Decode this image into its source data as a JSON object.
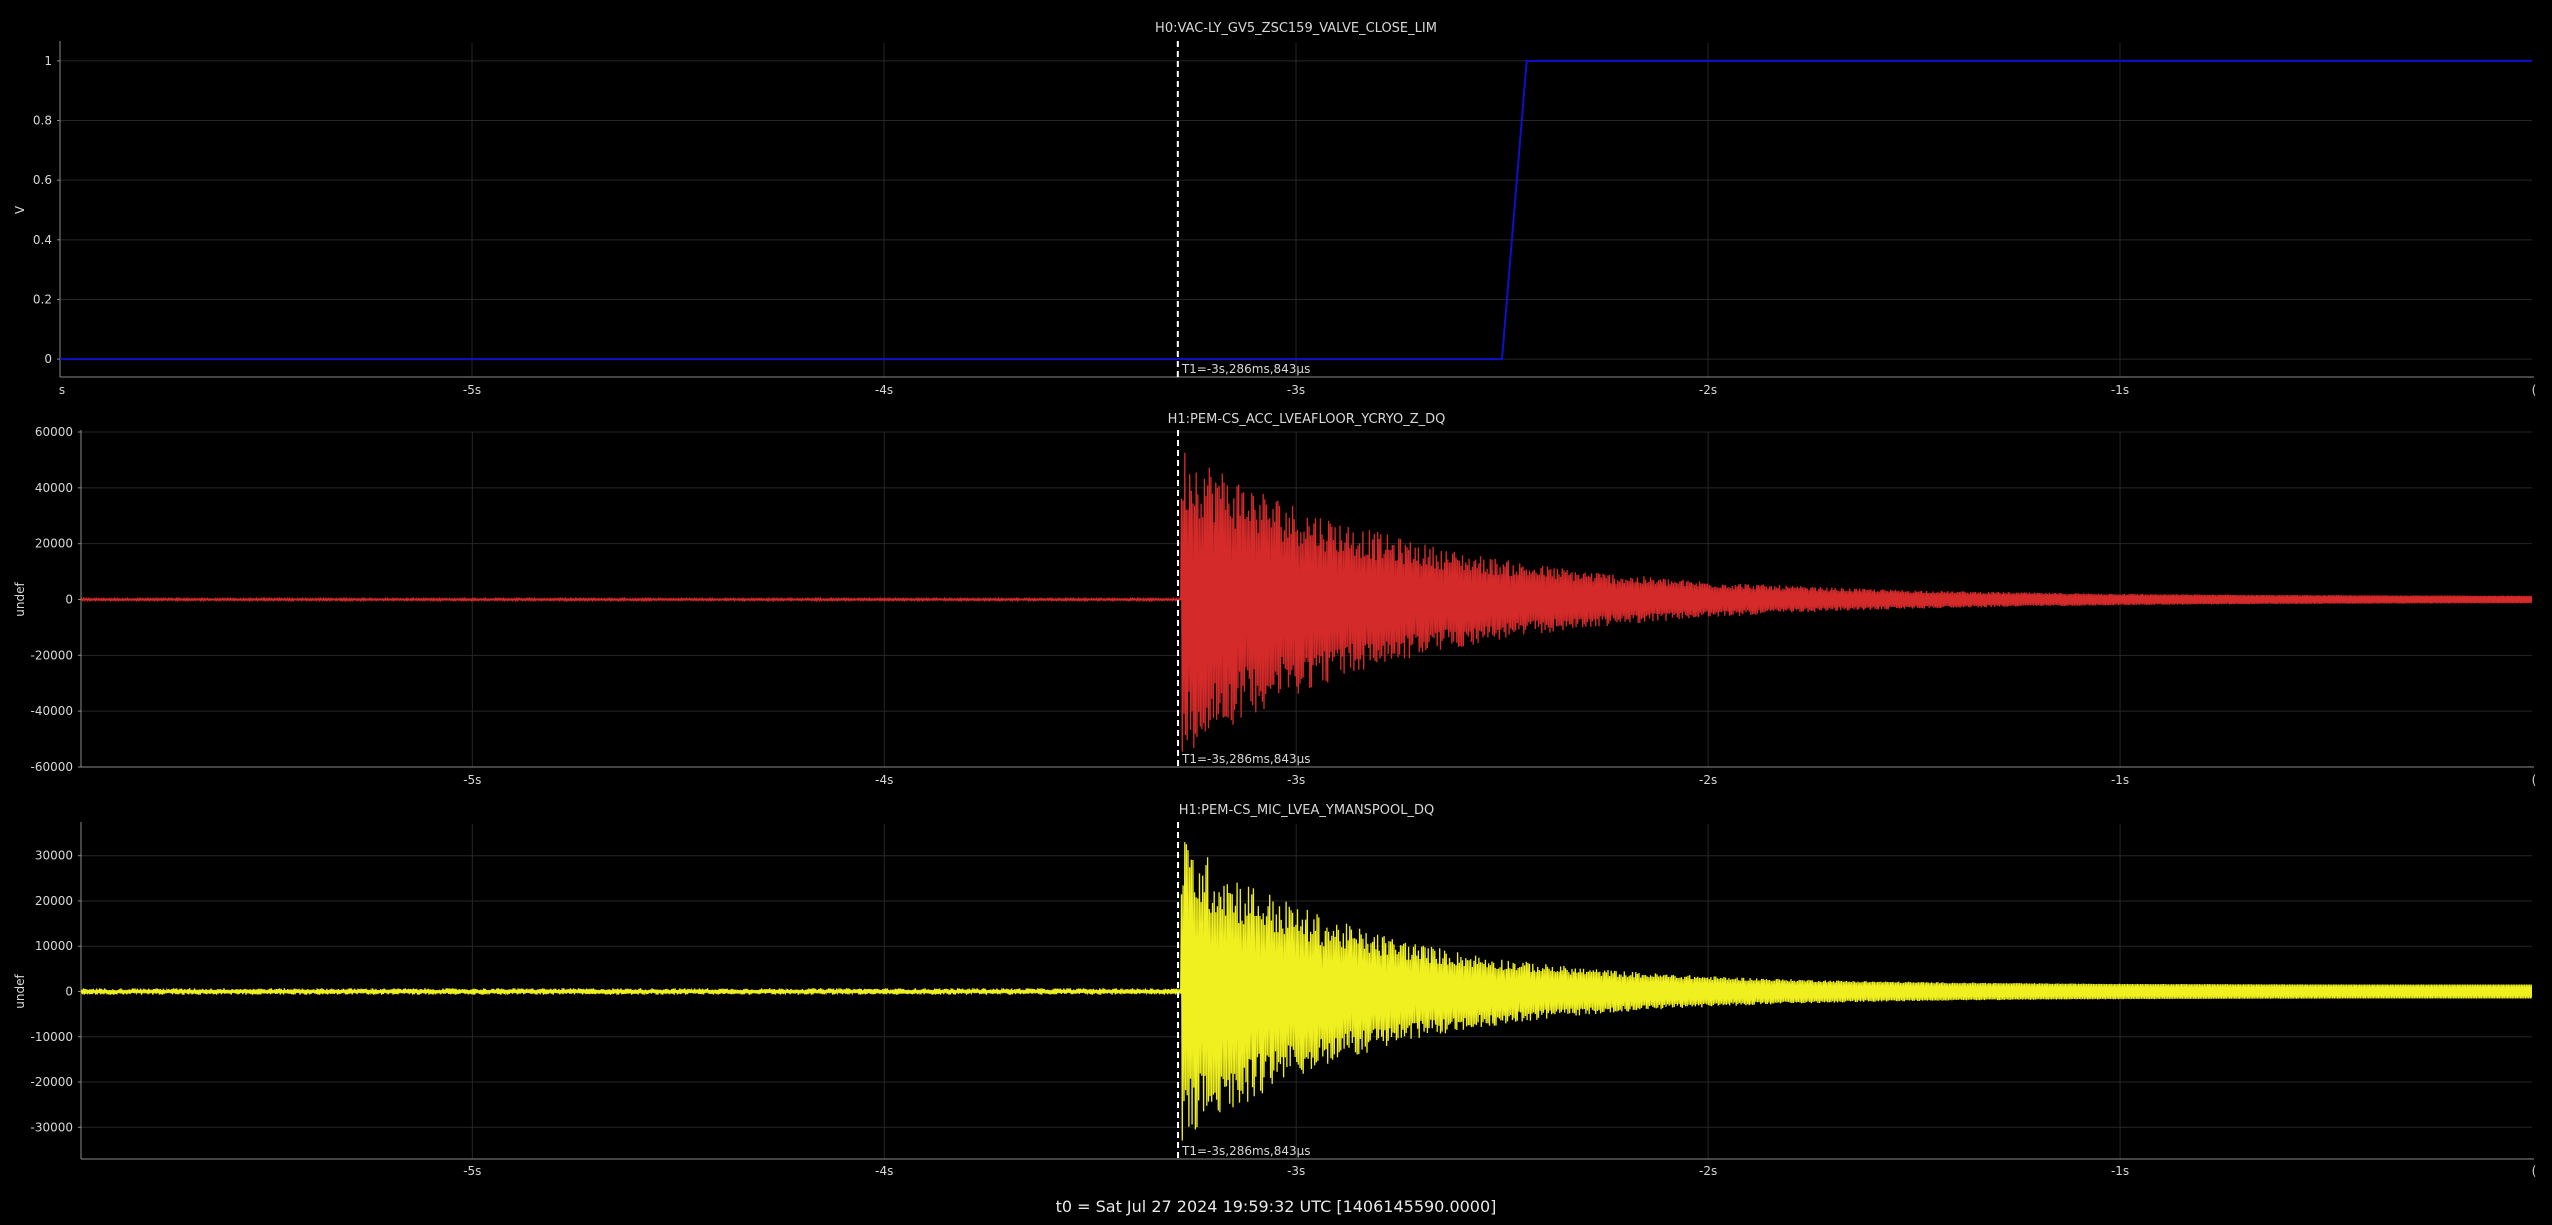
{
  "footer": {
    "t0": "t0 = Sat Jul 27 2024 19:59:32 UTC [1406145590.0000]"
  },
  "cursor": {
    "x": -3.286843,
    "label": "T1=-3s,286ms,843µs"
  },
  "colors": {
    "background": "#000000",
    "grid": "#262626",
    "axis": "#8a8a8a",
    "text": "#d8d8d8",
    "cursor": "#ffffff"
  },
  "chart_data": [
    {
      "type": "line",
      "title": "H0:VAC-LY_GV5_ZSC159_VALVE_CLOSE_LIM",
      "ylabel": "V",
      "xlim": [
        -6.0,
        0.0
      ],
      "ylim": [
        -0.06,
        1.06
      ],
      "xticks": [
        -5,
        -4,
        -3,
        -2,
        -1
      ],
      "xticklabels": [
        "-5s",
        "-4s",
        "-3s",
        "-2s",
        "-1s"
      ],
      "xedge_labels": [
        "s",
        "("
      ],
      "yticks": [
        0,
        0.2,
        0.4,
        0.6,
        0.8,
        1
      ],
      "yticklabels": [
        "0",
        "0.2",
        "0.4",
        "0.6",
        "0.8",
        "1"
      ],
      "grid": true,
      "series": [
        {
          "color": "#1010cc",
          "x": [
            -6.0,
            -2.5,
            -2.44,
            0.0
          ],
          "y": [
            0,
            0,
            1,
            1
          ]
        }
      ]
    },
    {
      "type": "line",
      "title": "H1:PEM-CS_ACC_LVEAFLOOR_YCRYO_Z_DQ",
      "ylabel": "undef",
      "xlim": [
        -5.95,
        0.0
      ],
      "ylim": [
        -60000,
        60000
      ],
      "xticks": [
        -5,
        -4,
        -3,
        -2,
        -1
      ],
      "xticklabels": [
        "-5s",
        "-4s",
        "-3s",
        "-2s",
        "-1s"
      ],
      "xedge_labels": [
        "",
        "("
      ],
      "yticks": [
        -60000,
        -40000,
        -20000,
        0,
        20000,
        40000,
        60000
      ],
      "yticklabels": [
        "-60000",
        "-40000",
        "-20000",
        "0",
        "20000",
        "40000",
        "60000"
      ],
      "grid": true,
      "series": [
        {
          "color": "#d42a2a",
          "waveform": "decaying-oscillation",
          "onset": -3.28,
          "peak": 55000,
          "decay_time": 0.55,
          "baseline_amplitude": 400,
          "tail_amplitude": 1200
        }
      ]
    },
    {
      "type": "line",
      "title": "H1:PEM-CS_MIC_LVEA_YMANSPOOL_DQ",
      "ylabel": "undef",
      "xlim": [
        -5.95,
        0.0
      ],
      "ylim": [
        -37000,
        37000
      ],
      "xticks": [
        -5,
        -4,
        -3,
        -2,
        -1
      ],
      "xticklabels": [
        "-5s",
        "-4s",
        "-3s",
        "-2s",
        "-1s"
      ],
      "xedge_labels": [
        "",
        "("
      ],
      "yticks": [
        -30000,
        -20000,
        -10000,
        0,
        10000,
        20000,
        30000
      ],
      "yticklabels": [
        "-30000",
        "-20000",
        "-10000",
        "0",
        "10000",
        "20000",
        "30000"
      ],
      "grid": true,
      "series": [
        {
          "color": "#f0f020",
          "waveform": "decaying-oscillation-clipped",
          "onset": -3.28,
          "peak": 33000,
          "clip": 33000,
          "decay_time": 0.45,
          "baseline_amplitude": 700,
          "tail_amplitude": 1500
        }
      ]
    }
  ]
}
